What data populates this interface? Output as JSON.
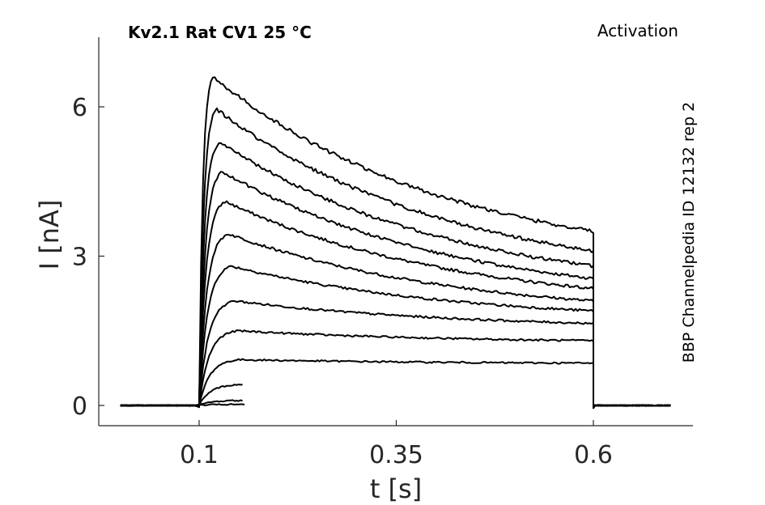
{
  "chart_data": {
    "type": "line",
    "title_left": "Kv2.1  Rat  CV1  25 °C",
    "title_right": "Activation",
    "side_label": "BBP Channelpedia ID 12132 rep 2",
    "xlabel": "t [s]",
    "ylabel": "I [nA]",
    "xlim": [
      -0.1,
      0.7
    ],
    "ylim": [
      -0.4,
      7.4
    ],
    "xticks": [
      0.1,
      0.35,
      0.6
    ],
    "xtick_labels": [
      "0.1",
      "0.35",
      "0.6"
    ],
    "yticks": [
      0,
      3,
      6
    ],
    "ytick_labels": [
      "0",
      "3",
      "6"
    ],
    "grid": false,
    "pulse_start": 0.1,
    "pulse_end": 0.6,
    "baseline": 0,
    "series": [
      {
        "peak": 6.6,
        "end": 3.5
      },
      {
        "peak": 5.95,
        "end": 3.1
      },
      {
        "peak": 5.3,
        "end": 2.8
      },
      {
        "peak": 4.7,
        "end": 2.55
      },
      {
        "peak": 4.1,
        "end": 2.35
      },
      {
        "peak": 3.45,
        "end": 2.1
      },
      {
        "peak": 2.8,
        "end": 1.9
      },
      {
        "peak": 2.1,
        "end": 1.65
      },
      {
        "peak": 1.5,
        "end": 1.3
      },
      {
        "peak": 0.92,
        "end": 0.85
      },
      {
        "peak": 0.42,
        "end": 0.42
      },
      {
        "peak": 0.1,
        "end": 0.1
      },
      {
        "peak": 0.02,
        "end": 0.02
      }
    ]
  }
}
